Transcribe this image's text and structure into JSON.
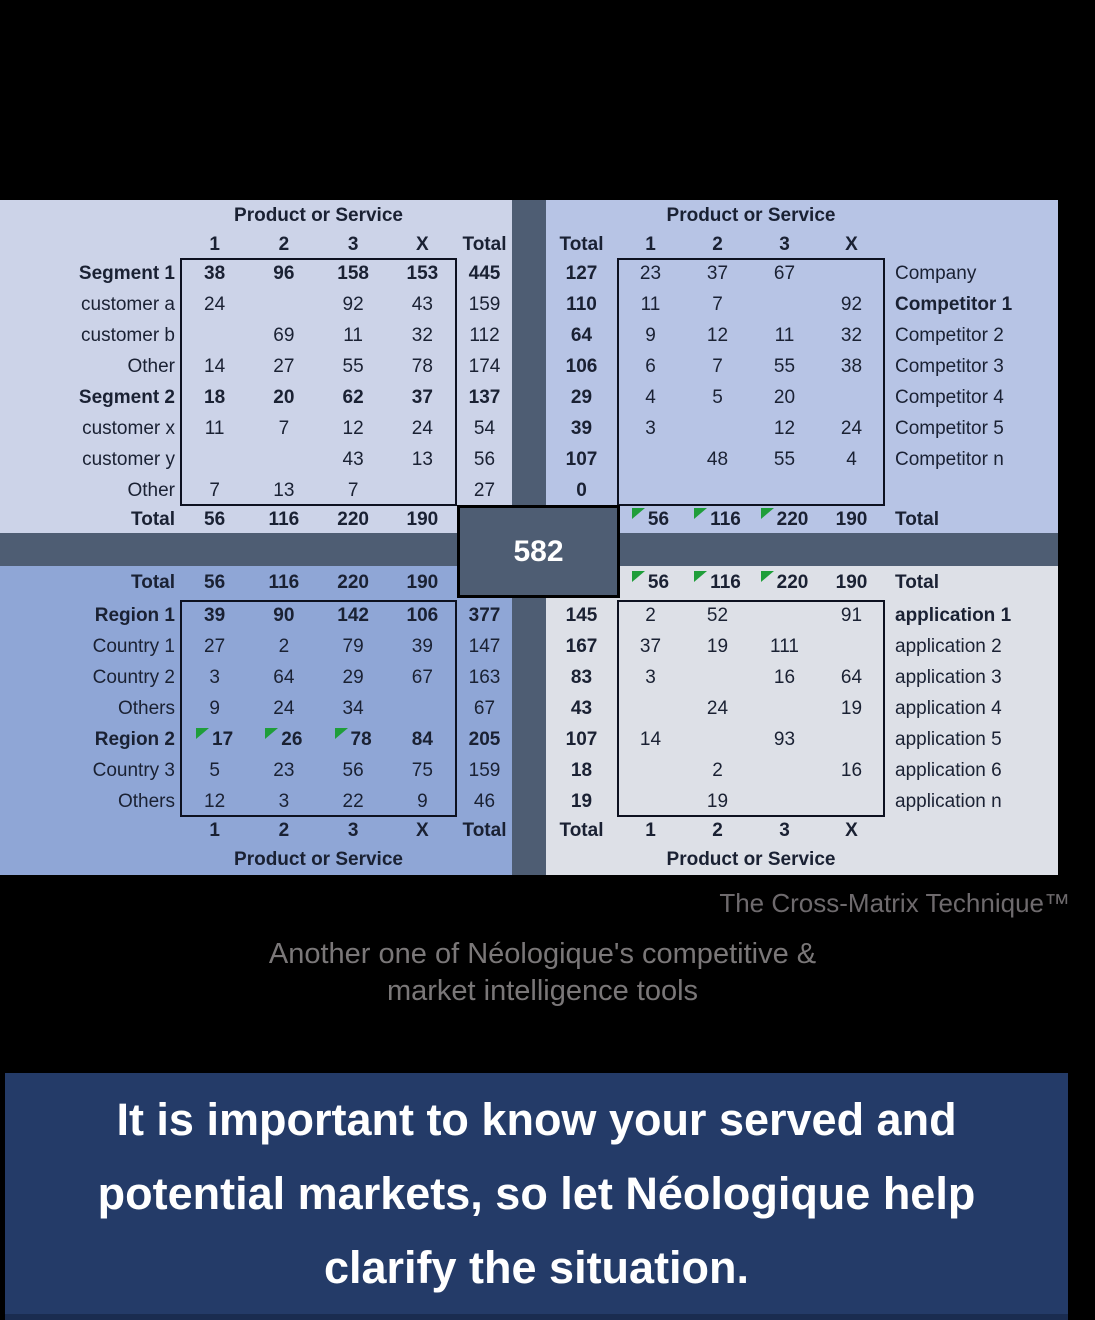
{
  "matrix": {
    "center_total": "582",
    "top_left": {
      "axis_title": "Product or Service",
      "col_headers": [
        "1",
        "2",
        "3",
        "X",
        "Total"
      ],
      "rows": [
        {
          "label": "Segment 1",
          "bold": true,
          "values": [
            "38",
            "96",
            "158",
            "153"
          ],
          "total": "445",
          "total_bold": true
        },
        {
          "label": "customer a",
          "bold": false,
          "values": [
            "24",
            "",
            "92",
            "43"
          ],
          "total": "159",
          "total_bold": false
        },
        {
          "label": "customer b",
          "bold": false,
          "values": [
            "",
            "69",
            "11",
            "32"
          ],
          "total": "112",
          "total_bold": false
        },
        {
          "label": "Other",
          "bold": false,
          "values": [
            "14",
            "27",
            "55",
            "78"
          ],
          "total": "174",
          "total_bold": false
        },
        {
          "label": "Segment 2",
          "bold": true,
          "values": [
            "18",
            "20",
            "62",
            "37"
          ],
          "total": "137",
          "total_bold": true
        },
        {
          "label": "customer x",
          "bold": false,
          "values": [
            "11",
            "7",
            "12",
            "24"
          ],
          "total": "54",
          "total_bold": false
        },
        {
          "label": "customer y",
          "bold": false,
          "values": [
            "",
            "",
            "43",
            "13"
          ],
          "total": "56",
          "total_bold": false
        },
        {
          "label": "Other",
          "bold": false,
          "values": [
            "7",
            "13",
            "7",
            ""
          ],
          "total": "27",
          "total_bold": false
        }
      ],
      "total_row": {
        "label": "Total",
        "values": [
          "56",
          "116",
          "220",
          "190"
        ]
      }
    },
    "top_right": {
      "axis_title": "Product or Service",
      "col_headers": [
        "Total",
        "1",
        "2",
        "3",
        "X"
      ],
      "rows": [
        {
          "total": "127",
          "values": [
            "23",
            "37",
            "67",
            ""
          ],
          "label": "Company",
          "bold": false
        },
        {
          "total": "110",
          "values": [
            "11",
            "7",
            "",
            "92"
          ],
          "label": "Competitor 1",
          "bold": true
        },
        {
          "total": "64",
          "values": [
            "9",
            "12",
            "11",
            "32"
          ],
          "label": "Competitor 2",
          "bold": false
        },
        {
          "total": "106",
          "values": [
            "6",
            "7",
            "55",
            "38"
          ],
          "label": "Competitor 3",
          "bold": false
        },
        {
          "total": "29",
          "values": [
            "4",
            "5",
            "20",
            ""
          ],
          "label": "Competitor 4",
          "bold": false
        },
        {
          "total": "39",
          "values": [
            "3",
            "",
            "12",
            "24"
          ],
          "label": "Competitor 5",
          "bold": false
        },
        {
          "total": "107",
          "values": [
            "",
            "48",
            "55",
            "4"
          ],
          "label": "Competitor n",
          "bold": false
        },
        {
          "total": "0",
          "values": [
            "",
            "",
            "",
            ""
          ],
          "label": "",
          "bold": false
        }
      ],
      "total_row": {
        "label": "Total",
        "values": [
          "56",
          "116",
          "220",
          "190"
        ],
        "green_flags": [
          true,
          true,
          true,
          false
        ]
      }
    },
    "bottom_left": {
      "axis_title": "Product or Service",
      "header_row": {
        "label": "Total",
        "values": [
          "56",
          "116",
          "220",
          "190"
        ]
      },
      "rows": [
        {
          "label": "Region 1",
          "bold": true,
          "values": [
            "39",
            "90",
            "142",
            "106"
          ],
          "total": "377",
          "total_bold": true
        },
        {
          "label": "Country 1",
          "bold": false,
          "values": [
            "27",
            "2",
            "79",
            "39"
          ],
          "total": "147",
          "total_bold": false
        },
        {
          "label": "Country 2",
          "bold": false,
          "values": [
            "3",
            "64",
            "29",
            "67"
          ],
          "total": "163",
          "total_bold": false
        },
        {
          "label": "Others",
          "bold": false,
          "values": [
            "9",
            "24",
            "34",
            ""
          ],
          "total": "67",
          "total_bold": false
        },
        {
          "label": "Region 2",
          "bold": true,
          "values": [
            "17",
            "26",
            "78",
            "84"
          ],
          "total": "205",
          "total_bold": true,
          "green_flags": [
            true,
            true,
            true,
            false
          ]
        },
        {
          "label": "Country 3",
          "bold": false,
          "values": [
            "5",
            "23",
            "56",
            "75"
          ],
          "total": "159",
          "total_bold": false
        },
        {
          "label": "Others",
          "bold": false,
          "values": [
            "12",
            "3",
            "22",
            "9"
          ],
          "total": "46",
          "total_bold": false
        }
      ],
      "footer_headers": [
        "1",
        "2",
        "3",
        "X",
        "Total"
      ]
    },
    "bottom_right": {
      "axis_title": "Product or Service",
      "header_row": {
        "label": "Total",
        "values": [
          "56",
          "116",
          "220",
          "190"
        ],
        "green_flags": [
          true,
          true,
          true,
          false
        ]
      },
      "rows": [
        {
          "total": "145",
          "values": [
            "2",
            "52",
            "",
            "91"
          ],
          "label": "application 1",
          "bold": true
        },
        {
          "total": "167",
          "values": [
            "37",
            "19",
            "111",
            ""
          ],
          "label": "application 2",
          "bold": false
        },
        {
          "total": "83",
          "values": [
            "3",
            "",
            "16",
            "64"
          ],
          "label": "application 3",
          "bold": false
        },
        {
          "total": "43",
          "values": [
            "",
            "24",
            "",
            "19"
          ],
          "label": "application 4",
          "bold": false
        },
        {
          "total": "107",
          "values": [
            "14",
            "",
            "93",
            ""
          ],
          "label": "application 5",
          "bold": false
        },
        {
          "total": "18",
          "values": [
            "",
            "2",
            "",
            "16"
          ],
          "label": "application 6",
          "bold": false
        },
        {
          "total": "19",
          "values": [
            "",
            "19",
            "",
            ""
          ],
          "label": "application n",
          "bold": false
        }
      ],
      "footer_headers": [
        "Total",
        "1",
        "2",
        "3",
        "X"
      ]
    }
  },
  "captions": {
    "technique": "The Cross-Matrix Technique™",
    "subtitle_line1": "Another one of Néologique's competitive &",
    "subtitle_line2": "market intelligence tools"
  },
  "banner": {
    "line1": "It is important to know your served and",
    "line2": "potential markets, so let Néologique help",
    "line3": "clarify the situation."
  },
  "colors": {
    "quad_top_left_bg": "#ccd3e8",
    "quad_top_right_bg": "#b7c4e5",
    "quad_bottom_left_bg": "#8fa6d6",
    "quad_bottom_right_bg": "#dde0e7",
    "divider": "#4e5d73",
    "center_box_bg": "#4e5d73",
    "flag_green": "#1f9e3a",
    "banner_bg": "#243b68",
    "banner_text": "#ffffff",
    "caption_gray": "#6e6a6d",
    "table_text": "#1a2133"
  }
}
